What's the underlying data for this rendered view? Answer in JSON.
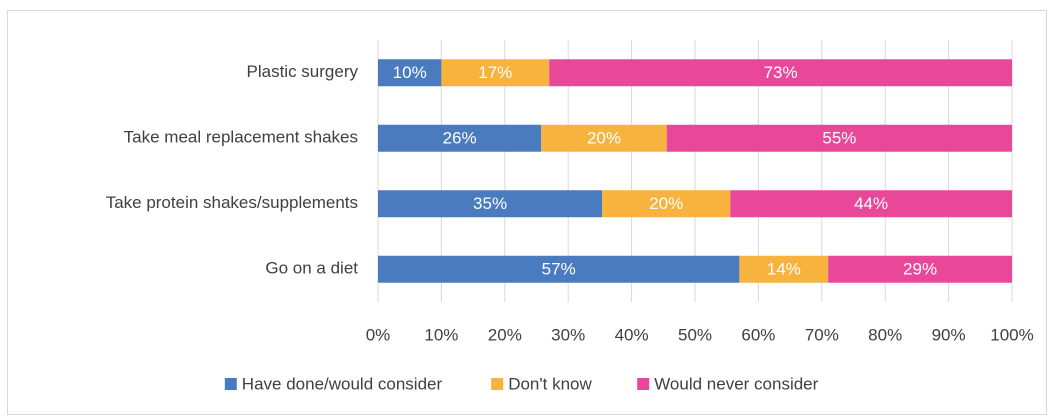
{
  "chart_data": {
    "type": "bar",
    "orientation": "horizontal",
    "stacking": "percent",
    "categories": [
      "Plastic surgery",
      "Take meal replacement shakes",
      "Take protein shakes/supplements",
      "Go on a diet"
    ],
    "series": [
      {
        "name": "Have done/would consider",
        "color": "#4a7bbf",
        "values": [
          10,
          26,
          35,
          57
        ],
        "value_labels": [
          "10%",
          "26%",
          "35%",
          "57%"
        ]
      },
      {
        "name": "Don't know",
        "color": "#f8b33f",
        "values": [
          17,
          20,
          20,
          14
        ],
        "value_labels": [
          "17%",
          "20%",
          "20%",
          "14%"
        ]
      },
      {
        "name": "Would never consider",
        "color": "#e9489a",
        "values": [
          73,
          55,
          44,
          29
        ],
        "value_labels": [
          "73%",
          "55%",
          "44%",
          "29%"
        ]
      }
    ],
    "xlim": [
      0,
      100
    ],
    "xticks": [
      {
        "value": 0,
        "label": "0%"
      },
      {
        "value": 10,
        "label": "10%"
      },
      {
        "value": 20,
        "label": "20%"
      },
      {
        "value": 30,
        "label": "30%"
      },
      {
        "value": 40,
        "label": "40%"
      },
      {
        "value": 50,
        "label": "50%"
      },
      {
        "value": 60,
        "label": "60%"
      },
      {
        "value": 70,
        "label": "70%"
      },
      {
        "value": 80,
        "label": "80%"
      },
      {
        "value": 90,
        "label": "90%"
      },
      {
        "value": 100,
        "label": "100%"
      }
    ],
    "grid": true,
    "legend": "bottom"
  }
}
